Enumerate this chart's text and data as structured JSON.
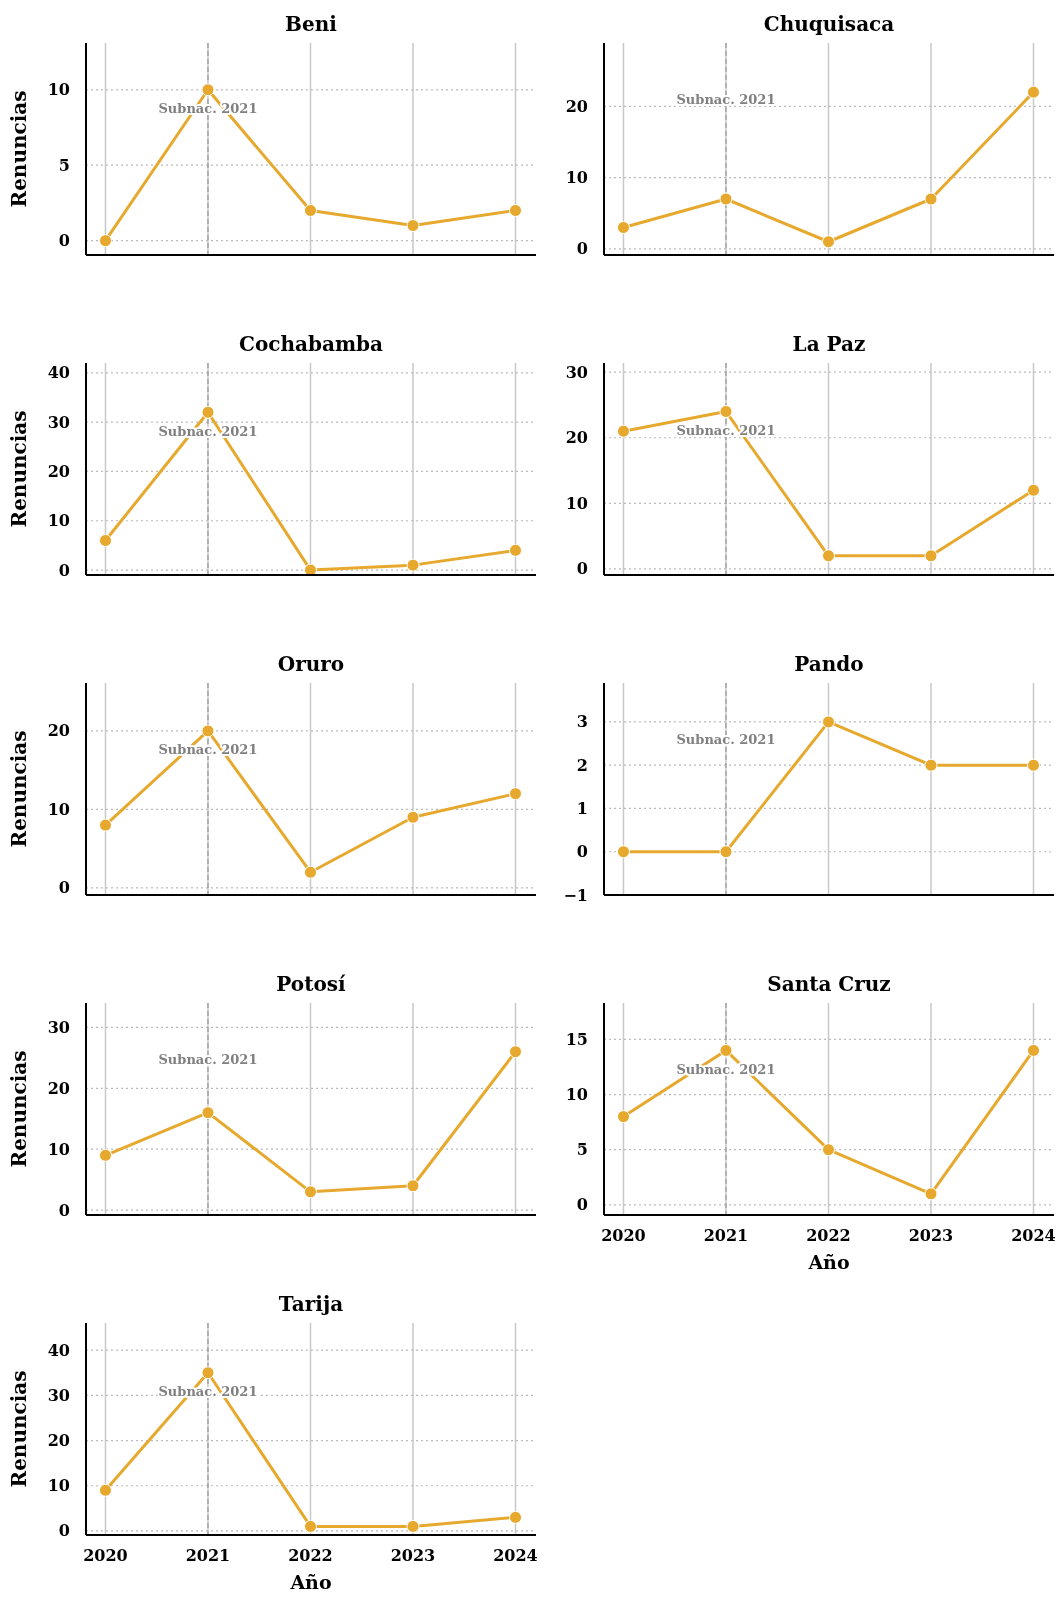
{
  "chart_data": [
    {
      "type": "line",
      "title": "Beni",
      "ylabel": "Renuncias",
      "x": [
        2020,
        2021,
        2022,
        2023,
        2024
      ],
      "series": [
        {
          "color": "#e6a92e",
          "values": [
            0,
            10,
            2,
            1,
            2
          ]
        }
      ],
      "xlim": [
        2019.81,
        2024.2
      ],
      "xticks": [
        2020,
        2021,
        2022,
        2023,
        2024
      ],
      "ylim": [
        -0.95,
        13.1
      ],
      "yticks": [
        0,
        5,
        10
      ],
      "tick_labels": "y",
      "grid": true,
      "marker": "circle",
      "ref_lines": [
        {
          "axis": "x",
          "value": 2021,
          "label": "Subnac. 2021",
          "line_style": "dashed",
          "color": "#999999"
        }
      ]
    },
    {
      "type": "line",
      "title": "Chuquisaca",
      "x": [
        2020,
        2021,
        2022,
        2023,
        2024
      ],
      "series": [
        {
          "color": "#e6a92e",
          "values": [
            3,
            7,
            1,
            7,
            22
          ]
        }
      ],
      "xlim": [
        2019.81,
        2024.2
      ],
      "xticks": [
        2020,
        2021,
        2022,
        2023,
        2024
      ],
      "ylim": [
        -0.86,
        28.9
      ],
      "yticks": [
        0,
        10,
        20
      ],
      "tick_labels": "y",
      "grid": true,
      "marker": "circle",
      "ref_lines": [
        {
          "axis": "x",
          "value": 2021,
          "label": "Subnac. 2021",
          "line_style": "dashed",
          "color": "#999999"
        }
      ]
    },
    {
      "type": "line",
      "title": "Cochabamba",
      "ylabel": "Renuncias",
      "x": [
        2020,
        2021,
        2022,
        2023,
        2024
      ],
      "series": [
        {
          "color": "#e6a92e",
          "values": [
            6,
            32,
            0,
            1,
            4
          ]
        }
      ],
      "xlim": [
        2019.81,
        2024.2
      ],
      "xticks": [
        2020,
        2021,
        2022,
        2023,
        2024
      ],
      "ylim": [
        -1,
        42
      ],
      "yticks": [
        0,
        10,
        20,
        30,
        40
      ],
      "tick_labels": "y",
      "grid": true,
      "marker": "circle",
      "ref_lines": [
        {
          "axis": "x",
          "value": 2021,
          "label": "Subnac. 2021",
          "line_style": "dashed",
          "color": "#999999"
        }
      ]
    },
    {
      "type": "line",
      "title": "La Paz",
      "x": [
        2020,
        2021,
        2022,
        2023,
        2024
      ],
      "series": [
        {
          "color": "#e6a92e",
          "values": [
            21,
            24,
            2,
            2,
            12
          ]
        }
      ],
      "xlim": [
        2019.81,
        2024.2
      ],
      "xticks": [
        2020,
        2021,
        2022,
        2023,
        2024
      ],
      "ylim": [
        -0.93,
        31.4
      ],
      "yticks": [
        0,
        10,
        20,
        30
      ],
      "tick_labels": "y",
      "grid": true,
      "marker": "circle",
      "ref_lines": [
        {
          "axis": "x",
          "value": 2021,
          "label": "Subnac. 2021",
          "line_style": "dashed",
          "color": "#999999"
        }
      ]
    },
    {
      "type": "line",
      "title": "Oruro",
      "ylabel": "Renuncias",
      "x": [
        2020,
        2021,
        2022,
        2023,
        2024
      ],
      "series": [
        {
          "color": "#e6a92e",
          "values": [
            8,
            20,
            2,
            9,
            12
          ]
        }
      ],
      "xlim": [
        2019.81,
        2024.2
      ],
      "xticks": [
        2020,
        2021,
        2022,
        2023,
        2024
      ],
      "ylim": [
        -0.9,
        26.1
      ],
      "yticks": [
        0,
        10,
        20
      ],
      "tick_labels": "y",
      "grid": true,
      "marker": "circle",
      "ref_lines": [
        {
          "axis": "x",
          "value": 2021,
          "label": "Subnac. 2021",
          "line_style": "dashed",
          "color": "#999999"
        }
      ]
    },
    {
      "type": "line",
      "title": "Pando",
      "x": [
        2020,
        2021,
        2022,
        2023,
        2024
      ],
      "series": [
        {
          "color": "#e6a92e",
          "values": [
            0,
            0,
            3,
            2,
            2
          ]
        }
      ],
      "xlim": [
        2019.81,
        2024.2
      ],
      "xticks": [
        2020,
        2021,
        2022,
        2023,
        2024
      ],
      "ylim": [
        -1,
        3.9
      ],
      "yticks": [
        {
          "value": -1,
          "label": "−1"
        },
        0,
        1,
        2,
        3
      ],
      "tick_labels": "y",
      "grid": true,
      "marker": "circle",
      "ref_lines": [
        {
          "axis": "x",
          "value": 2021,
          "label": "Subnac. 2021",
          "line_style": "dashed",
          "color": "#999999"
        }
      ]
    },
    {
      "type": "line",
      "title": "Potosí",
      "ylabel": "Renuncias",
      "x": [
        2020,
        2021,
        2022,
        2023,
        2024
      ],
      "series": [
        {
          "color": "#e6a92e",
          "values": [
            9,
            16,
            3,
            4,
            26
          ]
        }
      ],
      "xlim": [
        2019.81,
        2024.2
      ],
      "xticks": [
        2020,
        2021,
        2022,
        2023,
        2024
      ],
      "ylim": [
        -0.8,
        34
      ],
      "yticks": [
        0,
        10,
        20,
        30
      ],
      "tick_labels": "y",
      "grid": true,
      "marker": "circle",
      "ref_lines": [
        {
          "axis": "x",
          "value": 2021,
          "label": "Subnac. 2021",
          "line_style": "dashed",
          "color": "#999999"
        }
      ]
    },
    {
      "type": "line",
      "title": "Santa Cruz",
      "xlabel": "Año",
      "x": [
        2020,
        2021,
        2022,
        2023,
        2024
      ],
      "series": [
        {
          "color": "#e6a92e",
          "values": [
            8,
            14,
            5,
            1,
            14
          ]
        }
      ],
      "xlim": [
        2019.81,
        2024.2
      ],
      "xticks": [
        2020,
        2021,
        2022,
        2023,
        2024
      ],
      "ylim": [
        -0.92,
        18.3
      ],
      "yticks": [
        0,
        5,
        10,
        15
      ],
      "grid": true,
      "marker": "circle",
      "ref_lines": [
        {
          "axis": "x",
          "value": 2021,
          "label": "Subnac. 2021",
          "line_style": "dashed",
          "color": "#999999"
        }
      ]
    },
    {
      "type": "line",
      "title": "Tarija",
      "xlabel": "Año",
      "ylabel": "Renuncias",
      "x": [
        2020,
        2021,
        2022,
        2023,
        2024
      ],
      "series": [
        {
          "color": "#e6a92e",
          "values": [
            9,
            35,
            1,
            1,
            3
          ]
        }
      ],
      "xlim": [
        2019.81,
        2024.2
      ],
      "xticks": [
        2020,
        2021,
        2022,
        2023,
        2024
      ],
      "ylim": [
        -0.9,
        46
      ],
      "yticks": [
        0,
        10,
        20,
        30,
        40
      ],
      "grid": true,
      "marker": "circle",
      "ref_lines": [
        {
          "axis": "x",
          "value": 2021,
          "label": "Subnac. 2021",
          "line_style": "dashed",
          "color": "#999999"
        }
      ]
    }
  ]
}
